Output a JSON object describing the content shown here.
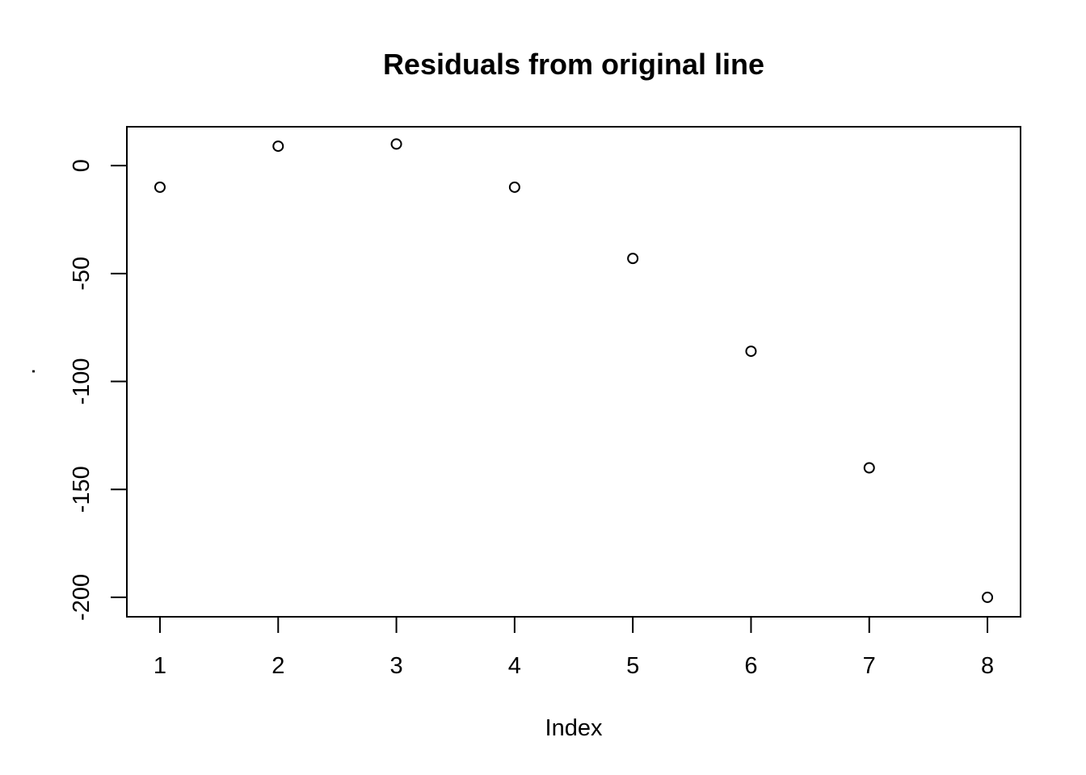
{
  "chart_data": {
    "type": "scatter",
    "title": "Residuals from original line",
    "xlabel": "Index",
    "ylabel": ".",
    "x": [
      1,
      2,
      3,
      4,
      5,
      6,
      7,
      8
    ],
    "y": [
      -10,
      9,
      10,
      -10,
      -43,
      -86,
      -140,
      -200
    ],
    "xticks": [
      1,
      2,
      3,
      4,
      5,
      6,
      7,
      8
    ],
    "yticks": [
      0,
      -50,
      -100,
      -150,
      -200
    ],
    "xlim": [
      0.72,
      8.28
    ],
    "ylim": [
      -209,
      18
    ],
    "grid": false,
    "marker": "open-circle",
    "colors": {
      "points": "#000000",
      "axes": "#000000",
      "background": "#ffffff"
    }
  }
}
